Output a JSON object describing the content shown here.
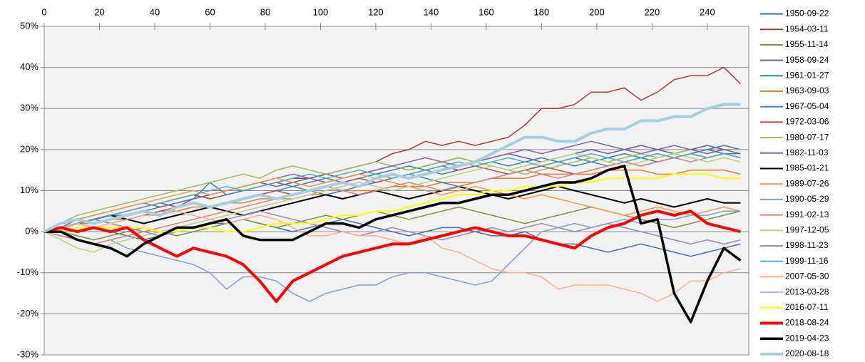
{
  "chart_data": {
    "type": "line",
    "x": [
      0,
      6,
      12,
      18,
      24,
      30,
      36,
      42,
      48,
      54,
      60,
      66,
      72,
      78,
      84,
      90,
      96,
      102,
      108,
      114,
      120,
      126,
      132,
      138,
      144,
      150,
      156,
      162,
      168,
      174,
      180,
      186,
      192,
      198,
      204,
      210,
      216,
      222,
      228,
      234,
      240,
      246,
      252
    ],
    "xlim": [
      0,
      255
    ],
    "xticks": [
      0,
      20,
      40,
      60,
      80,
      100,
      120,
      140,
      160,
      180,
      200,
      220,
      240
    ],
    "ylim": [
      -30,
      50
    ],
    "yticks": [
      {
        "value": -30,
        "label": "-30%"
      },
      {
        "value": -20,
        "label": "-20%"
      },
      {
        "value": -10,
        "label": "-10%"
      },
      {
        "value": 0,
        "label": "0%"
      },
      {
        "value": 10,
        "label": "10%"
      },
      {
        "value": 20,
        "label": "20%"
      },
      {
        "value": 30,
        "label": "30%"
      },
      {
        "value": 40,
        "label": "40%"
      },
      {
        "value": 50,
        "label": "50%"
      }
    ],
    "grid": true,
    "series": [
      {
        "name": "1950-09-22",
        "color": "#3f6fb5",
        "width": 1.5,
        "values": [
          0,
          1,
          2,
          1,
          0,
          -1,
          -2,
          -1,
          0,
          1,
          2,
          2,
          3,
          2,
          1,
          0,
          1,
          2,
          3,
          2,
          1,
          0,
          -1,
          0,
          1,
          1,
          0,
          -1,
          -1,
          0,
          -2,
          -3,
          -3,
          -4,
          -5,
          -4,
          -3,
          -4,
          -5,
          -6,
          -5,
          -4,
          -3
        ]
      },
      {
        "name": "1954-03-11",
        "color": "#a0403a",
        "width": 1.5,
        "values": [
          0,
          1,
          2,
          3,
          4,
          5,
          6,
          7,
          8,
          9,
          8,
          9,
          10,
          11,
          12,
          13,
          13,
          14,
          15,
          16,
          17,
          19,
          20,
          22,
          21,
          22,
          21,
          22,
          23,
          26,
          30,
          30,
          31,
          34,
          34,
          35,
          32,
          34,
          37,
          38,
          38,
          40,
          36
        ]
      },
      {
        "name": "1955-11-14",
        "color": "#77933c",
        "width": 1.5,
        "values": [
          0,
          0,
          -1,
          -2,
          -1,
          0,
          1,
          0,
          -1,
          0,
          1,
          2,
          3,
          2,
          1,
          2,
          3,
          4,
          3,
          4,
          5,
          4,
          3,
          4,
          5,
          6,
          5,
          4,
          3,
          2,
          3,
          4,
          5,
          6,
          5,
          4,
          3,
          2,
          1,
          2,
          3,
          4,
          5
        ]
      },
      {
        "name": "1958-09-24",
        "color": "#70589a",
        "width": 1.5,
        "values": [
          0,
          1,
          2,
          3,
          4,
          5,
          6,
          7,
          6,
          8,
          9,
          10,
          11,
          12,
          11,
          12,
          13,
          14,
          13,
          14,
          15,
          16,
          15,
          16,
          17,
          18,
          17,
          18,
          19,
          18,
          17,
          18,
          19,
          20,
          19,
          20,
          21,
          20,
          19,
          20,
          21,
          20,
          20
        ]
      },
      {
        "name": "1961-01-27",
        "color": "#31859c",
        "width": 1.5,
        "values": [
          0,
          1,
          2,
          3,
          4,
          4,
          5,
          6,
          7,
          8,
          12,
          9,
          10,
          11,
          12,
          11,
          12,
          13,
          12,
          13,
          14,
          15,
          16,
          15,
          14,
          15,
          16,
          17,
          16,
          17,
          18,
          17,
          16,
          17,
          18,
          19,
          18,
          17,
          18,
          19,
          20,
          19,
          19
        ]
      },
      {
        "name": "1963-09-03",
        "color": "#e07b39",
        "width": 1.5,
        "values": [
          0,
          1,
          2,
          2,
          3,
          3,
          4,
          5,
          5,
          6,
          6,
          7,
          7,
          8,
          8,
          8,
          9,
          9,
          10,
          10,
          10,
          11,
          11,
          11,
          12,
          12,
          12,
          13,
          13,
          13,
          14,
          14,
          14,
          14,
          15,
          15,
          15,
          14,
          14,
          15,
          15,
          15,
          14
        ]
      },
      {
        "name": "1967-05-04",
        "color": "#4a7ebb",
        "width": 1.5,
        "values": [
          0,
          1,
          2,
          3,
          4,
          3,
          2,
          3,
          4,
          5,
          6,
          7,
          8,
          9,
          10,
          11,
          10,
          9,
          10,
          11,
          12,
          13,
          14,
          13,
          12,
          11,
          12,
          13,
          14,
          15,
          16,
          17,
          18,
          17,
          16,
          17,
          18,
          19,
          18,
          19,
          20,
          21,
          20
        ]
      },
      {
        "name": "1972-03-06",
        "color": "#b94a48",
        "width": 1.5,
        "values": [
          0,
          1,
          2,
          3,
          2,
          3,
          4,
          5,
          6,
          7,
          6,
          7,
          8,
          9,
          10,
          9,
          10,
          11,
          12,
          13,
          12,
          13,
          14,
          15,
          16,
          15,
          16,
          15,
          14,
          15,
          16,
          15,
          14,
          15,
          16,
          17,
          16,
          17,
          18,
          19,
          18,
          19,
          18
        ]
      },
      {
        "name": "1980-07-17",
        "color": "#9bbb59",
        "width": 1.5,
        "values": [
          0,
          2,
          4,
          5,
          6,
          7,
          8,
          9,
          10,
          11,
          12,
          13,
          14,
          13,
          15,
          16,
          15,
          14,
          15,
          16,
          17,
          16,
          15,
          16,
          17,
          18,
          17,
          16,
          15,
          14,
          15,
          16,
          17,
          18,
          17,
          18,
          19,
          18,
          19,
          20,
          19,
          20,
          20
        ]
      },
      {
        "name": "1982-11-03",
        "color": "#8064a2",
        "width": 1.5,
        "values": [
          0,
          1,
          3,
          4,
          5,
          6,
          7,
          6,
          7,
          8,
          9,
          10,
          11,
          12,
          13,
          14,
          13,
          12,
          13,
          14,
          15,
          16,
          17,
          18,
          17,
          16,
          17,
          18,
          19,
          20,
          19,
          20,
          21,
          22,
          21,
          20,
          19,
          20,
          21,
          20,
          19,
          20,
          19
        ]
      },
      {
        "name": "1985-01-21",
        "color": "#000000",
        "width": 2,
        "values": [
          0,
          1,
          2,
          3,
          4,
          3,
          2,
          3,
          4,
          5,
          6,
          5,
          4,
          5,
          6,
          7,
          8,
          9,
          8,
          9,
          10,
          9,
          8,
          9,
          10,
          11,
          10,
          9,
          8,
          9,
          10,
          11,
          10,
          9,
          8,
          7,
          8,
          7,
          6,
          7,
          8,
          7,
          7
        ]
      },
      {
        "name": "1989-07-26",
        "color": "#f79646",
        "width": 1.5,
        "values": [
          0,
          2,
          3,
          4,
          5,
          6,
          7,
          8,
          9,
          10,
          9,
          10,
          11,
          12,
          13,
          12,
          11,
          12,
          13,
          14,
          13,
          12,
          11,
          10,
          9,
          10,
          11,
          10,
          9,
          8,
          9,
          8,
          7,
          6,
          5,
          4,
          5,
          6,
          5,
          4,
          5,
          6,
          5
        ]
      },
      {
        "name": "1990-05-29",
        "color": "#7f9fd4",
        "width": 1.5,
        "values": [
          0,
          -1,
          -2,
          -3,
          -2,
          -4,
          -5,
          -6,
          -7,
          -8,
          -10,
          -14,
          -11,
          -11,
          -12,
          -15,
          -17,
          -15,
          -14,
          -13,
          -13,
          -11,
          -10,
          -10,
          -11,
          -12,
          -13,
          -12,
          -8,
          -4,
          0,
          1,
          2,
          1,
          2,
          3,
          2,
          3,
          3,
          4,
          4,
          5,
          5
        ]
      },
      {
        "name": "1991-02-13",
        "color": "#d9837f",
        "width": 1.5,
        "values": [
          0,
          -1,
          -2,
          -3,
          -2,
          -1,
          0,
          1,
          2,
          3,
          4,
          5,
          6,
          7,
          8,
          9,
          10,
          11,
          10,
          9,
          10,
          11,
          12,
          11,
          10,
          11,
          12,
          13,
          14,
          15,
          14,
          13,
          14,
          15,
          16,
          17,
          16,
          17,
          18,
          17,
          18,
          19,
          18
        ]
      },
      {
        "name": "1997-12-05",
        "color": "#b7d07d",
        "width": 1.5,
        "values": [
          0,
          -2,
          -4,
          -5,
          -3,
          -2,
          -1,
          0,
          1,
          2,
          3,
          4,
          5,
          6,
          7,
          8,
          9,
          10,
          11,
          12,
          11,
          10,
          11,
          12,
          13,
          14,
          15,
          16,
          15,
          16,
          17,
          18,
          19,
          18,
          17,
          16,
          17,
          18,
          19,
          18,
          17,
          18,
          17
        ]
      },
      {
        "name": "1998-11-23",
        "color": "#9c87be",
        "width": 1.5,
        "values": [
          0,
          1,
          2,
          3,
          2,
          1,
          0,
          -1,
          0,
          1,
          2,
          3,
          4,
          5,
          4,
          3,
          2,
          1,
          0,
          -1,
          0,
          1,
          0,
          -1,
          -2,
          -1,
          0,
          1,
          0,
          1,
          2,
          1,
          0,
          1,
          2,
          1,
          0,
          -1,
          -2,
          -3,
          -2,
          -3,
          -2
        ]
      },
      {
        "name": "1999-11-16",
        "color": "#4bacc6",
        "width": 1.5,
        "values": [
          0,
          1,
          2,
          3,
          4,
          5,
          6,
          7,
          8,
          9,
          10,
          11,
          10,
          11,
          12,
          13,
          14,
          13,
          14,
          15,
          14,
          13,
          14,
          15,
          16,
          17,
          16,
          17,
          18,
          17,
          16,
          17,
          18,
          19,
          18,
          17,
          18,
          19,
          18,
          19,
          18,
          19,
          18
        ]
      },
      {
        "name": "2007-05-30",
        "color": "#f9b088",
        "width": 1.5,
        "values": [
          0,
          1,
          2,
          1,
          2,
          3,
          4,
          4,
          5,
          4,
          3,
          2,
          3,
          4,
          3,
          1,
          -1,
          -1,
          0,
          -1,
          -1,
          -2,
          -3,
          -1,
          -4,
          -5,
          -7,
          -9,
          -10,
          -10,
          -11,
          -14,
          -13,
          -13,
          -13,
          -14,
          -15,
          -17,
          -15,
          -12,
          -12,
          -10,
          -9
        ]
      },
      {
        "name": "2013-03-28",
        "color": "#a6b8d8",
        "width": 1.5,
        "values": [
          0,
          0,
          1,
          1,
          1,
          1,
          1,
          0,
          0,
          1,
          1,
          0,
          0,
          1,
          2,
          2,
          2,
          3,
          4,
          4,
          5,
          5,
          6,
          7,
          8,
          9,
          9,
          10,
          10,
          11,
          11,
          11,
          12,
          12,
          13,
          13,
          13,
          13,
          14,
          14,
          14,
          13,
          13
        ]
      },
      {
        "name": "2016-07-11",
        "color": "#ffff00",
        "width": 2,
        "values": [
          0,
          0,
          1,
          1,
          1,
          1,
          1,
          0,
          0,
          1,
          1,
          0,
          0,
          1,
          2,
          2,
          2,
          3,
          4,
          4,
          5,
          5,
          6,
          7,
          8,
          9,
          9,
          10,
          10,
          11,
          11,
          11,
          12,
          12,
          13,
          13,
          13,
          13,
          14,
          14,
          14,
          13,
          13
        ]
      },
      {
        "name": "2018-08-24",
        "color": "#ff0000",
        "width": 4,
        "values": [
          0,
          1,
          0,
          1,
          0,
          1,
          -2,
          -4,
          -6,
          -4,
          -5,
          -6,
          -8,
          -12,
          -17,
          -12,
          -10,
          -8,
          -6,
          -5,
          -4,
          -3,
          -3,
          -2,
          -1,
          0,
          1,
          0,
          -1,
          -1,
          -2,
          -3,
          -4,
          -1,
          1,
          2,
          4,
          5,
          4,
          5,
          2,
          1,
          0
        ]
      },
      {
        "name": "2019-04-23",
        "color": "#000000",
        "width": 3.5,
        "values": [
          0,
          0,
          -2,
          -3,
          -4,
          -6,
          -3,
          -1,
          1,
          1,
          2,
          3,
          -1,
          -2,
          -2,
          -2,
          0,
          2,
          2,
          1,
          3,
          4,
          5,
          6,
          7,
          7,
          8,
          9,
          9,
          10,
          11,
          12,
          12,
          13,
          15,
          16,
          2,
          3,
          -15,
          -22,
          -12,
          -4,
          -7
        ]
      },
      {
        "name": "2020-08-18",
        "color": "#a6cde0",
        "width": 4,
        "values": [
          0,
          2,
          3,
          2,
          3,
          4,
          5,
          4,
          6,
          7,
          6,
          7,
          8,
          9,
          8,
          9,
          10,
          11,
          12,
          11,
          13,
          14,
          13,
          14,
          15,
          16,
          17,
          19,
          21,
          23,
          23,
          22,
          22,
          24,
          25,
          25,
          27,
          27,
          28,
          28,
          30,
          31,
          31
        ]
      }
    ]
  }
}
